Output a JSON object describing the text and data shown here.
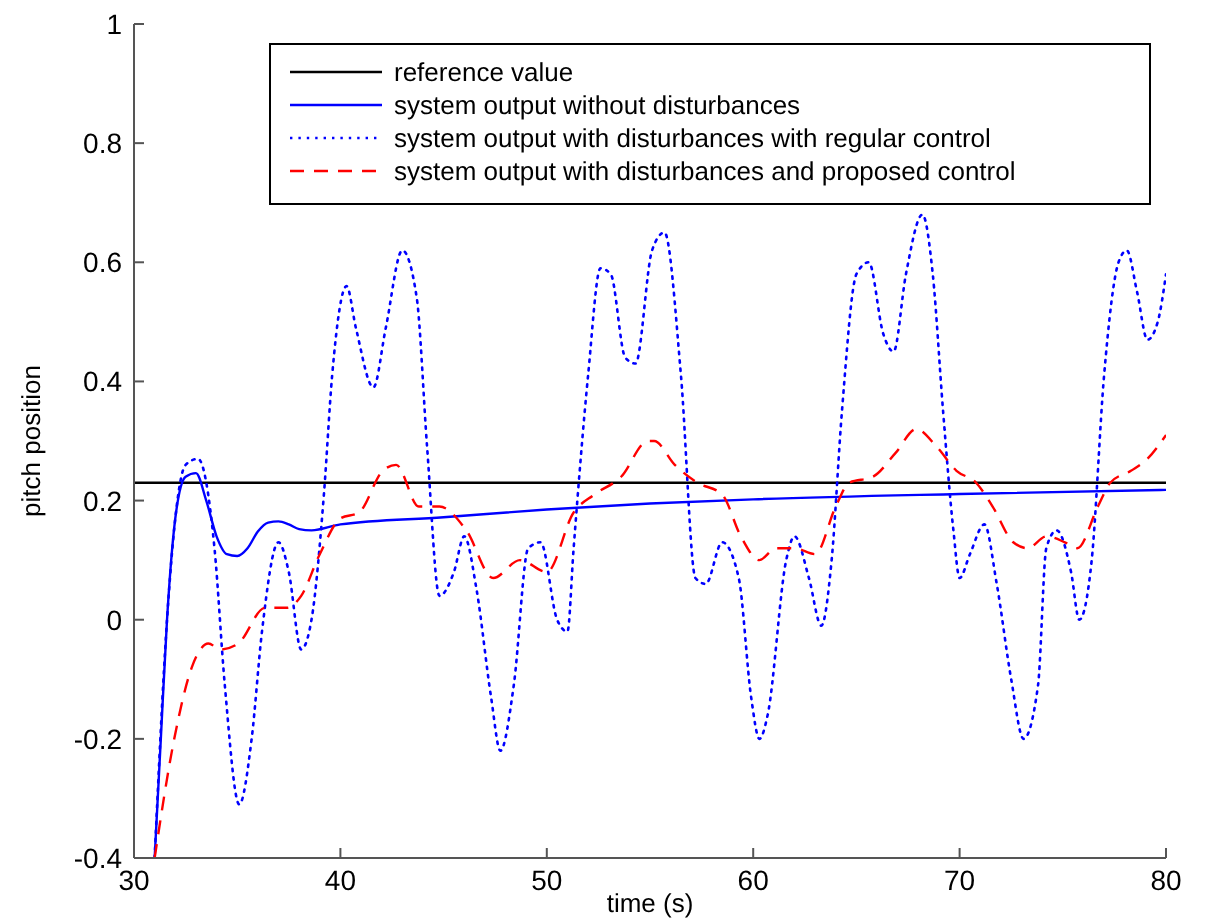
{
  "chart_data": {
    "type": "line",
    "xlabel": "time (s)",
    "ylabel": "pitch position",
    "xlim": [
      30,
      80
    ],
    "ylim": [
      -0.4,
      1
    ],
    "xticks": [
      30,
      40,
      50,
      60,
      70,
      80
    ],
    "yticks": [
      -0.4,
      -0.2,
      0,
      0.2,
      0.4,
      0.6,
      0.8,
      1
    ],
    "grid": false,
    "legend": "top right",
    "marker": "none",
    "series": [
      {
        "name": "reference value",
        "color": "#000000",
        "line_style": "solid",
        "x": [
          30,
          80
        ],
        "values": [
          0.23,
          0.23
        ]
      },
      {
        "name": "system output without disturbances",
        "color": "#0000ff",
        "line_style": "solid",
        "x": [
          31,
          31.3,
          31.6,
          32,
          32.5,
          33,
          33.5,
          34,
          34.5,
          35,
          35.5,
          36,
          36.5,
          37,
          37.5,
          38,
          38.6,
          40,
          45,
          50,
          55,
          60,
          70,
          80
        ],
        "values": [
          -0.4,
          -0.2,
          0,
          0.17,
          0.24,
          0.246,
          0.2,
          0.14,
          0.11,
          0.107,
          0.12,
          0.148,
          0.163,
          0.165,
          0.16,
          0.152,
          0.15,
          0.16,
          0.172,
          0.185,
          0.195,
          0.202,
          0.211,
          0.218
        ]
      },
      {
        "name": "system output with disturbances with regular control",
        "color": "#0000ff",
        "line_style": "dotted",
        "x": [
          31,
          31.6,
          32,
          32.5,
          33.1,
          33.9,
          34.4,
          35.1,
          35.7,
          36.2,
          37,
          37.5,
          38.1,
          38.6,
          39.2,
          39.6,
          40.3,
          40.75,
          41.6,
          42.2,
          43,
          43.7,
          44.2,
          44.8,
          45.5,
          46,
          46.6,
          47.3,
          47.75,
          48.4,
          49.1,
          49.7,
          50.5,
          51,
          51.3,
          52,
          52.6,
          53.1,
          53.8,
          54.3,
          55.1,
          55.7,
          56.5,
          57.2,
          57.7,
          58.5,
          59.3,
          59.9,
          60.3,
          60.7,
          61.6,
          62,
          62.7,
          63.3,
          63.8,
          64.3,
          65,
          65.6,
          66.3,
          66.8,
          67.4,
          68.2,
          68.7,
          69.2,
          69.7,
          70,
          70.5,
          71.2,
          71.8,
          72.5,
          73.1,
          73.8,
          74.2,
          74.7,
          75.4,
          75.8,
          76.4,
          77,
          77.7,
          78.1,
          78.6,
          79.1,
          79.6,
          80
        ],
        "values": [
          -0.4,
          0,
          0.17,
          0.26,
          0.27,
          0.12,
          -0.11,
          -0.31,
          -0.2,
          -0.02,
          0.13,
          0.08,
          -0.05,
          0,
          0.21,
          0.41,
          0.56,
          0.49,
          0.39,
          0.49,
          0.62,
          0.54,
          0.29,
          0.04,
          0.08,
          0.14,
          0.05,
          -0.13,
          -0.22,
          -0.11,
          0.12,
          0.13,
          0,
          -0.02,
          0.12,
          0.41,
          0.59,
          0.58,
          0.44,
          0.43,
          0.62,
          0.65,
          0.41,
          0.07,
          0.06,
          0.13,
          0.07,
          -0.13,
          -0.2,
          -0.16,
          0.1,
          0.14,
          0.07,
          -0.01,
          0.1,
          0.35,
          0.58,
          0.6,
          0.48,
          0.45,
          0.58,
          0.68,
          0.58,
          0.35,
          0.15,
          0.07,
          0.11,
          0.16,
          0.06,
          -0.1,
          -0.2,
          -0.11,
          0.12,
          0.15,
          0.08,
          0,
          0.1,
          0.41,
          0.6,
          0.62,
          0.55,
          0.47,
          0.5,
          0.58
        ]
      },
      {
        "name": "system output with disturbances and proposed control",
        "color": "#ff0000",
        "line_style": "dashed",
        "x": [
          31,
          31.95,
          32.8,
          33.6,
          34.2,
          35.05,
          36.35,
          37.4,
          38.1,
          39,
          40,
          40.9,
          42.05,
          42.7,
          43.8,
          44.8,
          46.1,
          47.4,
          48.7,
          50,
          51.3,
          52.3,
          53.6,
          54.9,
          55.2,
          56.2,
          57.3,
          58.5,
          59.4,
          60.3,
          61.1,
          62,
          63,
          64,
          64.65,
          65.8,
          66.9,
          67.9,
          68.9,
          69.85,
          70.8,
          71.6,
          72.6,
          73.3,
          74.2,
          75.1,
          75.7,
          76.7,
          77.3,
          78.3,
          79.1,
          80
        ],
        "values": [
          -0.4,
          -0.2,
          -0.08,
          -0.04,
          -0.05,
          -0.04,
          0.02,
          0.02,
          0.04,
          0.11,
          0.17,
          0.18,
          0.25,
          0.26,
          0.19,
          0.19,
          0.15,
          0.07,
          0.1,
          0.08,
          0.18,
          0.21,
          0.24,
          0.3,
          0.3,
          0.26,
          0.23,
          0.21,
          0.14,
          0.1,
          0.12,
          0.12,
          0.11,
          0.19,
          0.23,
          0.24,
          0.28,
          0.32,
          0.29,
          0.25,
          0.23,
          0.19,
          0.13,
          0.12,
          0.14,
          0.13,
          0.12,
          0.19,
          0.23,
          0.25,
          0.27,
          0.31
        ]
      }
    ]
  }
}
